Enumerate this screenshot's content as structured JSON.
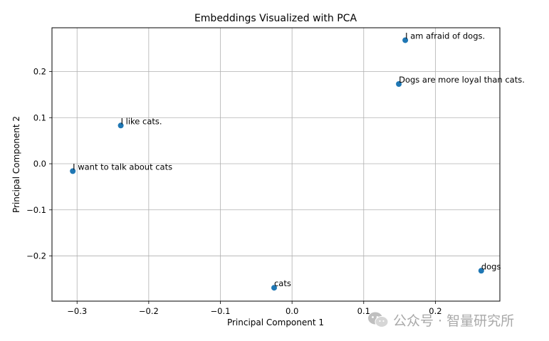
{
  "chart_data": {
    "type": "scatter",
    "title": "Embeddings Visualized with PCA",
    "xlabel": "Principal Component 1",
    "ylabel": "Principal Component 2",
    "xlim": [
      -0.335,
      0.29
    ],
    "ylim": [
      -0.298,
      0.295
    ],
    "xticks": [
      -0.3,
      -0.2,
      -0.1,
      0.0,
      0.1,
      0.2
    ],
    "xtick_labels": [
      "−0.3",
      "−0.2",
      "−0.1",
      "0.0",
      "0.1",
      "0.2"
    ],
    "yticks": [
      -0.2,
      -0.1,
      0.0,
      0.1,
      0.2
    ],
    "ytick_labels": [
      "−0.2",
      "−0.1",
      "0.0",
      "0.1",
      "0.2"
    ],
    "grid": true,
    "marker_color": "#1f77b4",
    "points": [
      {
        "x": 0.158,
        "y": 0.268,
        "label": "I am afraid of dogs."
      },
      {
        "x": 0.149,
        "y": 0.173,
        "label": "Dogs are more loyal than cats."
      },
      {
        "x": -0.239,
        "y": 0.083,
        "label": "I like cats."
      },
      {
        "x": -0.306,
        "y": -0.016,
        "label": "I want to talk about cats"
      },
      {
        "x": 0.264,
        "y": -0.232,
        "label": "dogs"
      },
      {
        "x": -0.025,
        "y": -0.269,
        "label": "cats"
      }
    ]
  },
  "watermark": {
    "text": "公众号 · 智量研究所",
    "icon": "wechat-icon"
  }
}
